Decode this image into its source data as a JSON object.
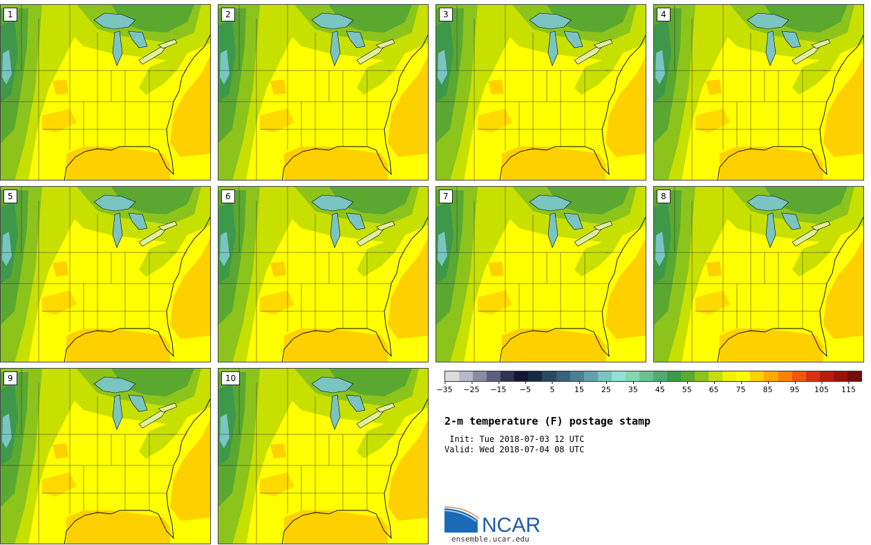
{
  "panels": [
    "1",
    "2",
    "3",
    "4",
    "5",
    "6",
    "7",
    "8",
    "9",
    "10"
  ],
  "colorbar": {
    "colors": [
      "#dcdcdc",
      "#b8b8c8",
      "#8a8aa0",
      "#5c607e",
      "#2e3454",
      "#101836",
      "#182a48",
      "#2a4a64",
      "#3a6278",
      "#4f7f94",
      "#63a0ac",
      "#7ac4c2",
      "#95e0d4",
      "#86d6b0",
      "#6cc092",
      "#52aa70",
      "#3e984a",
      "#5aa830",
      "#8cc41c",
      "#c4dc10",
      "#f0f000",
      "#ffff00",
      "#ffd000",
      "#ffaa00",
      "#ff8000",
      "#f05810",
      "#d83010",
      "#b81c0c",
      "#981408",
      "#701008"
    ],
    "tick_labels": [
      "−35",
      "−25",
      "−15",
      "−5",
      "5",
      "15",
      "25",
      "35",
      "45",
      "55",
      "65",
      "75",
      "85",
      "95",
      "105",
      "115"
    ],
    "min": -35,
    "max": 120
  },
  "title": "2-m temperature (F) postage stamp",
  "init": " Init: Tue 2018-07-03 12 UTC",
  "valid": "Valid: Wed 2018-07-04 08 UTC",
  "logo": {
    "text": "NCAR",
    "url": "ensemble.ucar.edu",
    "color": "#1a5aa8"
  }
}
